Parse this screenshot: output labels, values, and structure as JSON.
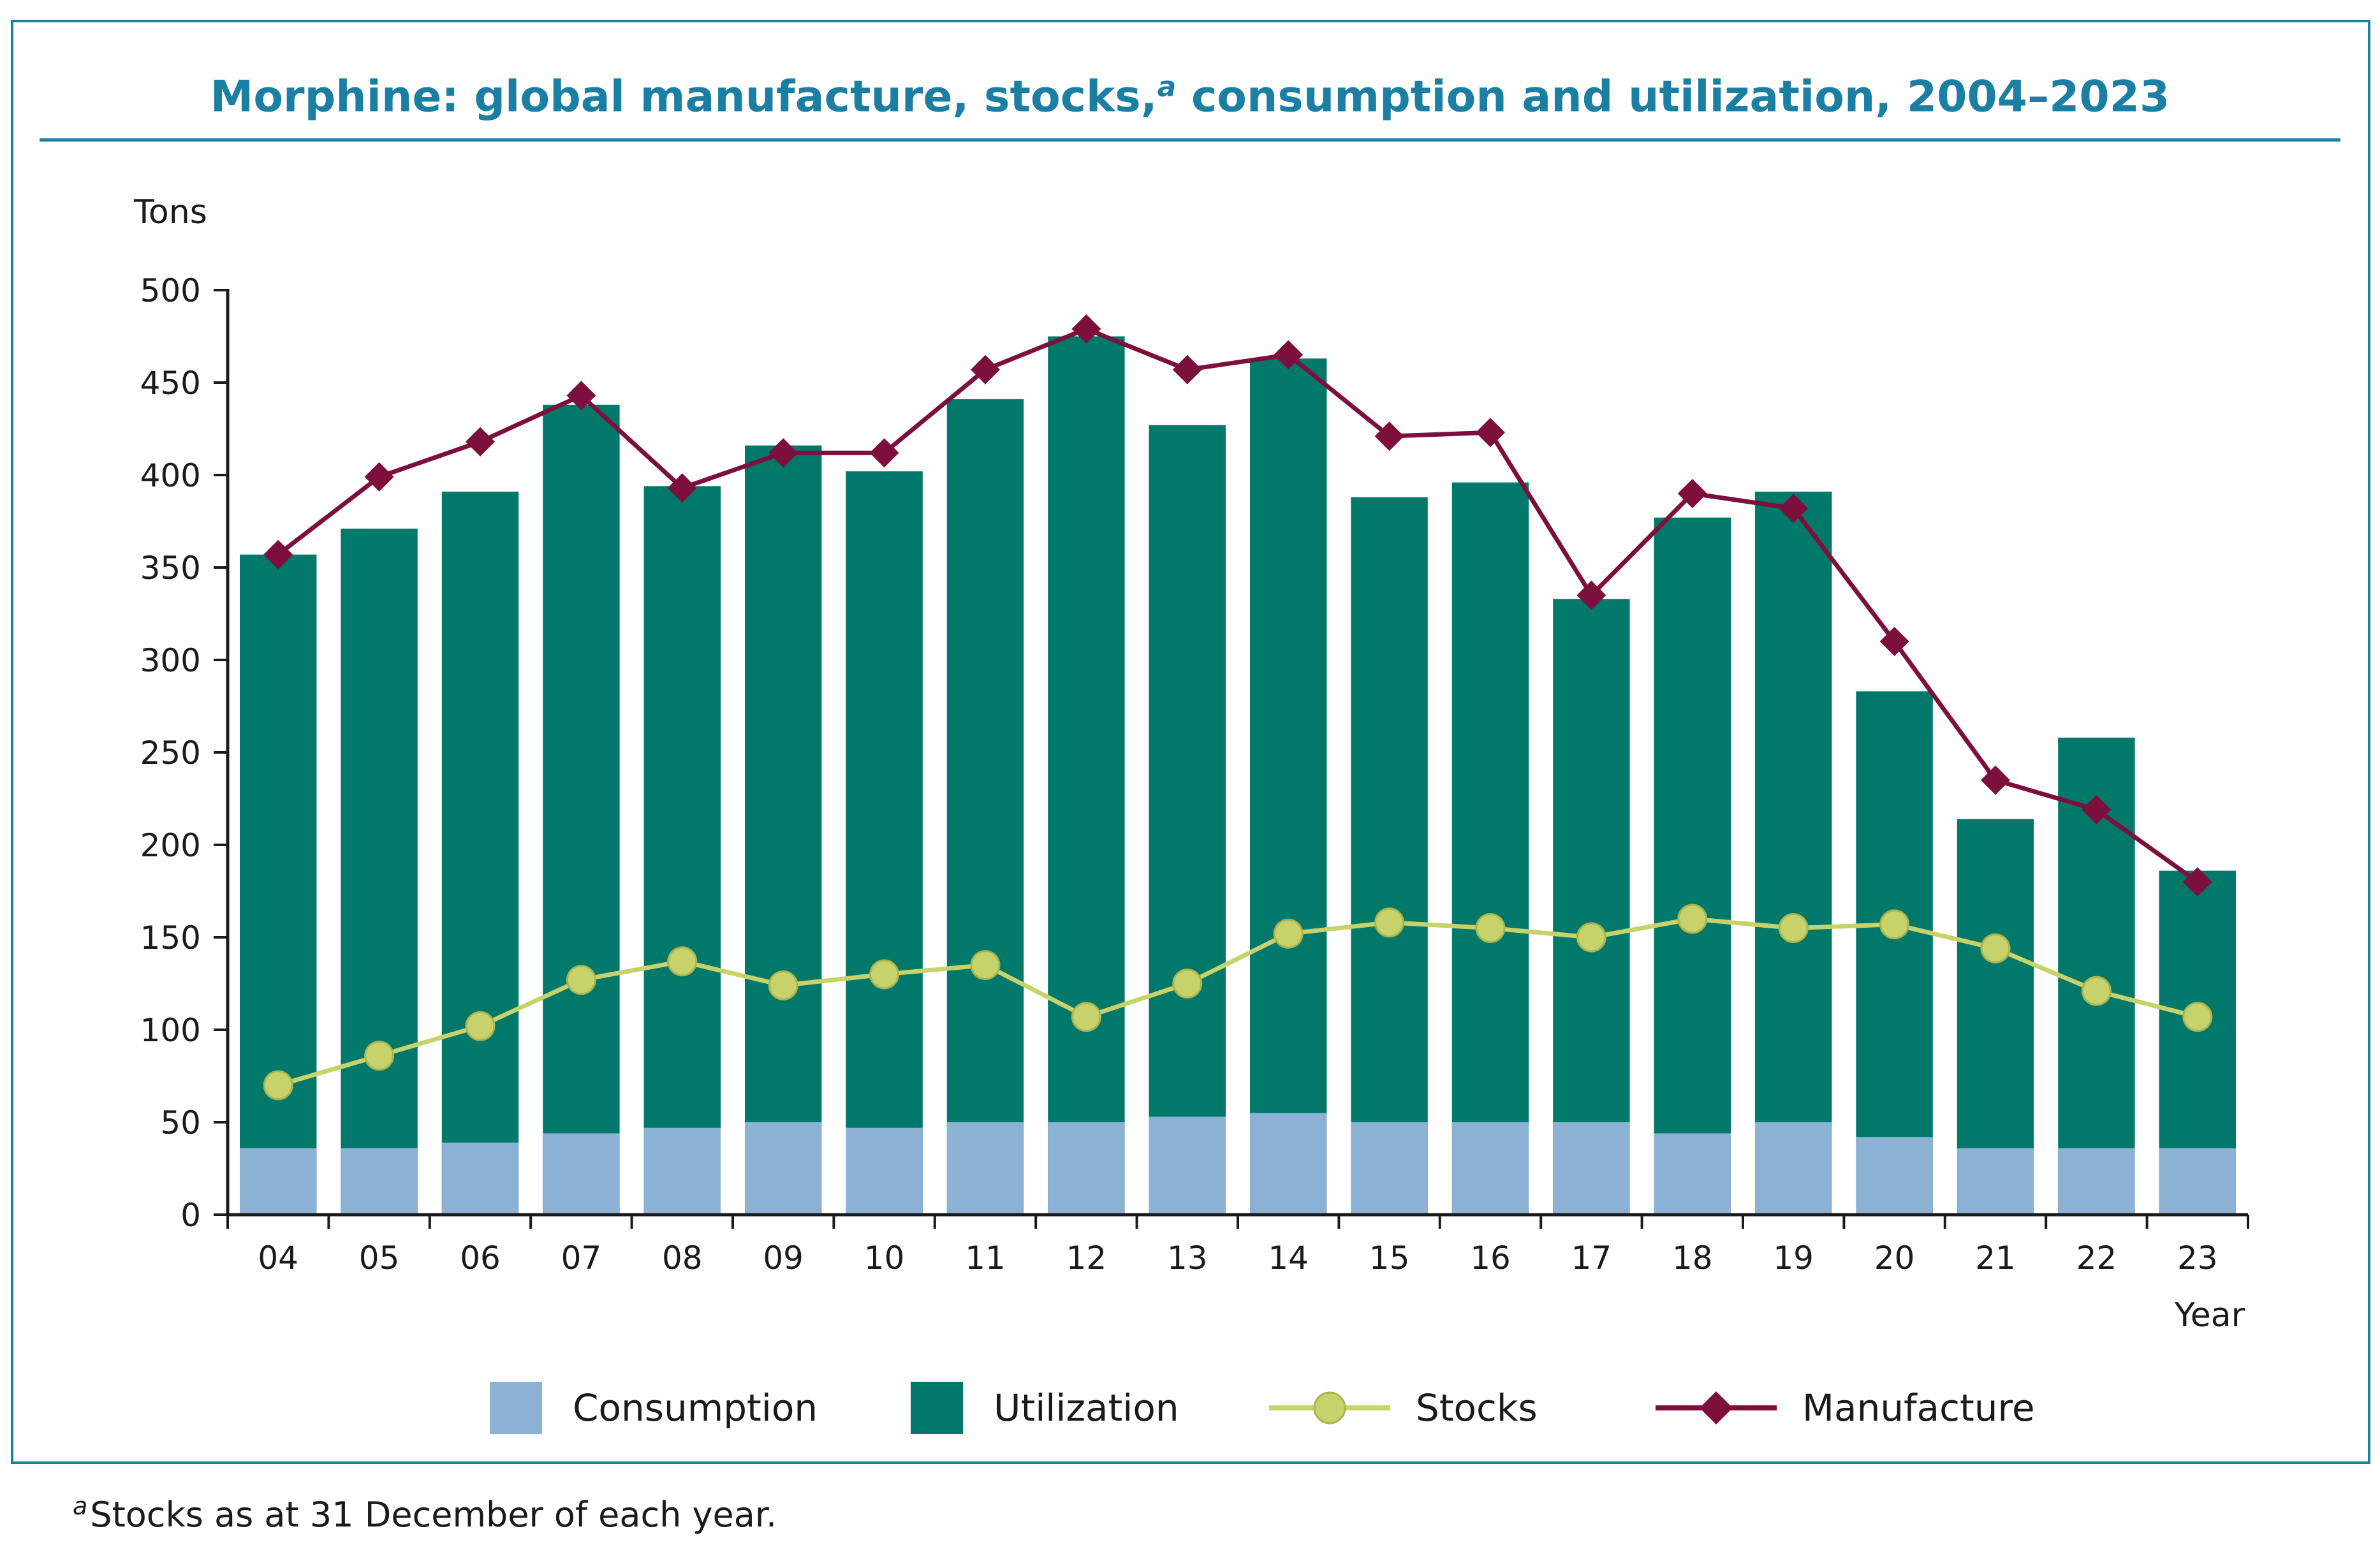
{
  "title": {
    "text_before": "Morphine: global manufacture, stocks,",
    "superscript": "a",
    "text_after": " consumption and utilization, 2004–2023"
  },
  "footnote": {
    "marker": "a",
    "text": "Stocks as at 31 December of each year."
  },
  "chart_data": {
    "type": "bar",
    "title": "Morphine: global manufacture, stocks,a consumption and utilization, 2004–2023",
    "ylabel": "Tons",
    "xlabel": "Year",
    "ylim": [
      0,
      500
    ],
    "yticks": [
      0,
      50,
      100,
      150,
      200,
      250,
      300,
      350,
      400,
      450,
      500
    ],
    "categories": [
      "04",
      "05",
      "06",
      "07",
      "08",
      "09",
      "10",
      "11",
      "12",
      "13",
      "14",
      "15",
      "16",
      "17",
      "18",
      "19",
      "20",
      "21",
      "22",
      "23"
    ],
    "legend_position": "bottom",
    "series": [
      {
        "name": "Consumption",
        "kind": "bar",
        "color": "#8bb1d4",
        "values": [
          36,
          36,
          39,
          44,
          47,
          50,
          47,
          50,
          50,
          53,
          55,
          50,
          50,
          50,
          44,
          50,
          42,
          36,
          36,
          36
        ]
      },
      {
        "name": "Utilization",
        "kind": "bar",
        "color": "#00786a",
        "values": [
          357,
          371,
          391,
          438,
          394,
          416,
          402,
          441,
          475,
          427,
          463,
          388,
          396,
          333,
          377,
          391,
          283,
          214,
          258,
          186
        ]
      },
      {
        "name": "Stocks",
        "kind": "line",
        "marker": "circle",
        "color": "#c8d26b",
        "values": [
          70,
          86,
          102,
          127,
          137,
          124,
          130,
          135,
          107,
          125,
          152,
          158,
          155,
          150,
          160,
          155,
          157,
          144,
          121,
          107
        ]
      },
      {
        "name": "Manufacture",
        "kind": "line",
        "marker": "diamond",
        "color": "#7d0f3c",
        "values": [
          357,
          399,
          418,
          443,
          393,
          412,
          412,
          457,
          479,
          457,
          465,
          421,
          423,
          335,
          390,
          382,
          310,
          235,
          219,
          180
        ]
      }
    ]
  }
}
